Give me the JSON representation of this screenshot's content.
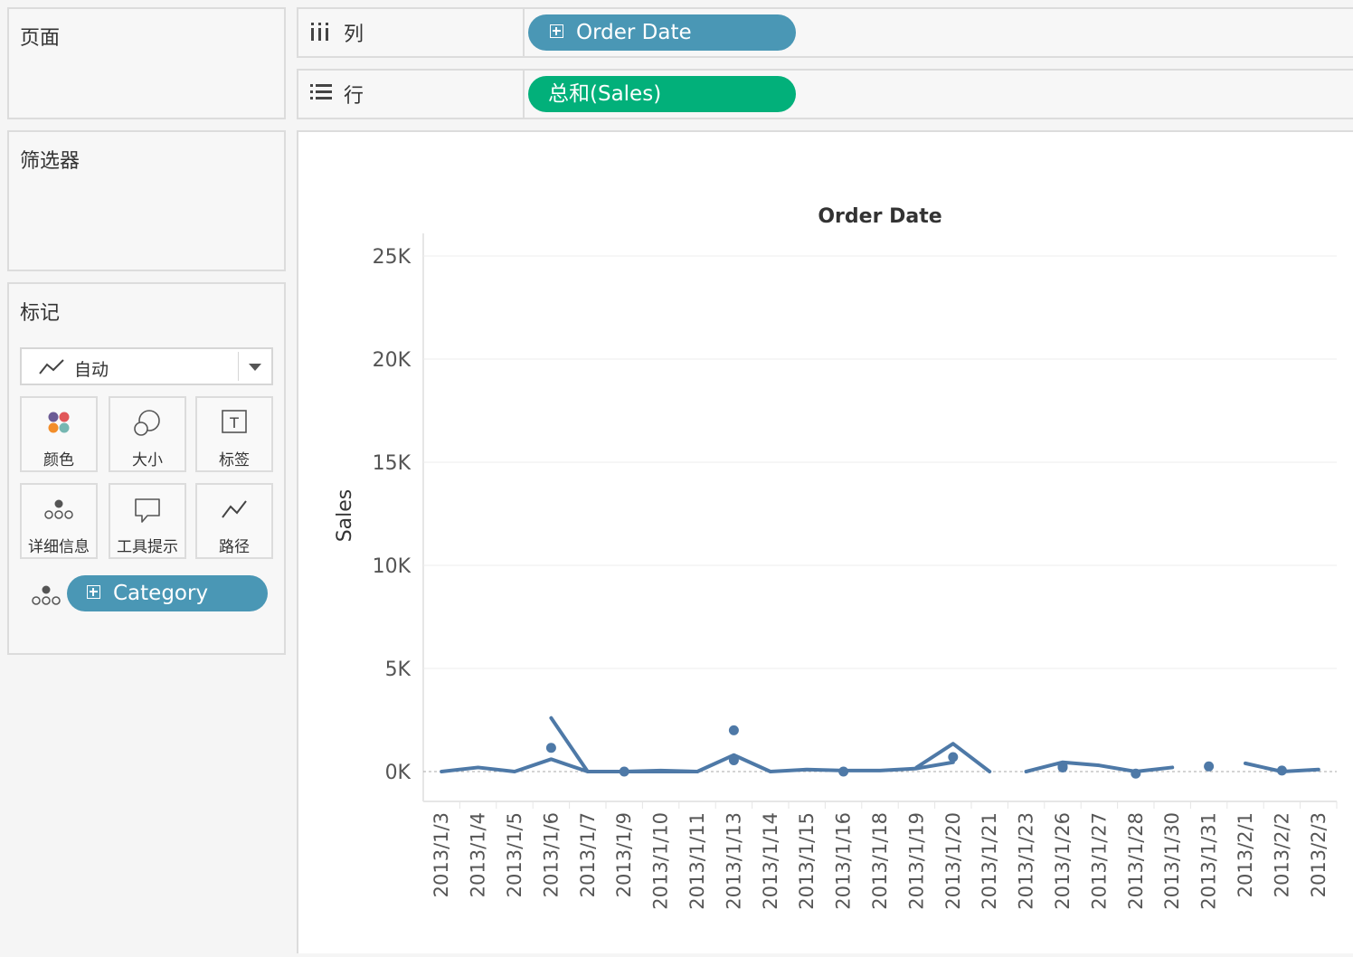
{
  "panels": {
    "pages": "页面",
    "filters": "筛选器",
    "marks": "标记"
  },
  "marks_card": {
    "mark_type": "自动",
    "buttons": {
      "color": "颜色",
      "size": "大小",
      "label": "标签",
      "detail": "详细信息",
      "tooltip": "工具提示",
      "path": "路径"
    },
    "detail_pill": "Category"
  },
  "shelves": {
    "columns": {
      "label": "列",
      "pill": "Order Date"
    },
    "rows": {
      "label": "行",
      "pill": "总和(Sales)"
    }
  },
  "colors": {
    "line": "#4e79a7",
    "pill_dimension": "#4a97b5",
    "pill_measure": "#02b07a"
  },
  "chart_data": {
    "type": "line",
    "title": "Order Date",
    "ylabel": "Sales",
    "ylim": [
      0,
      25000
    ],
    "yticks": [
      "0K",
      "5K",
      "10K",
      "15K",
      "20K",
      "25K"
    ],
    "grid": true,
    "categories": [
      "2013/1/3",
      "2013/1/4",
      "2013/1/5",
      "2013/1/6",
      "2013/1/7",
      "2013/1/9",
      "2013/1/10",
      "2013/1/11",
      "2013/1/13",
      "2013/1/14",
      "2013/1/15",
      "2013/1/16",
      "2013/1/18",
      "2013/1/19",
      "2013/1/20",
      "2013/1/21",
      "2013/1/23",
      "2013/1/26",
      "2013/1/27",
      "2013/1/28",
      "2013/1/30",
      "2013/1/31",
      "2013/2/1",
      "2013/2/2",
      "2013/2/3"
    ],
    "series": [
      {
        "values": [
          0,
          200,
          0,
          600,
          0,
          0,
          0,
          0,
          800,
          0,
          100,
          50,
          50,
          150,
          450,
          null,
          0,
          450,
          300,
          0,
          200,
          null,
          400,
          0,
          100
        ]
      },
      {
        "values": [
          null,
          null,
          null,
          2600,
          0,
          0,
          50,
          0,
          null,
          null,
          null,
          0,
          null,
          200,
          1350,
          0,
          null,
          200,
          null,
          -100,
          null,
          null,
          null,
          50,
          null
        ]
      },
      {
        "values": [
          null,
          null,
          null,
          1150,
          null,
          0,
          null,
          null,
          2000,
          null,
          null,
          null,
          null,
          null,
          700,
          null,
          null,
          250,
          null,
          null,
          null,
          250,
          null,
          null,
          null
        ]
      },
      {
        "values": [
          null,
          null,
          null,
          null,
          null,
          null,
          null,
          null,
          550,
          null,
          null,
          null,
          null,
          null,
          null,
          null,
          null,
          null,
          null,
          null,
          null,
          null,
          null,
          null,
          null
        ]
      }
    ]
  }
}
